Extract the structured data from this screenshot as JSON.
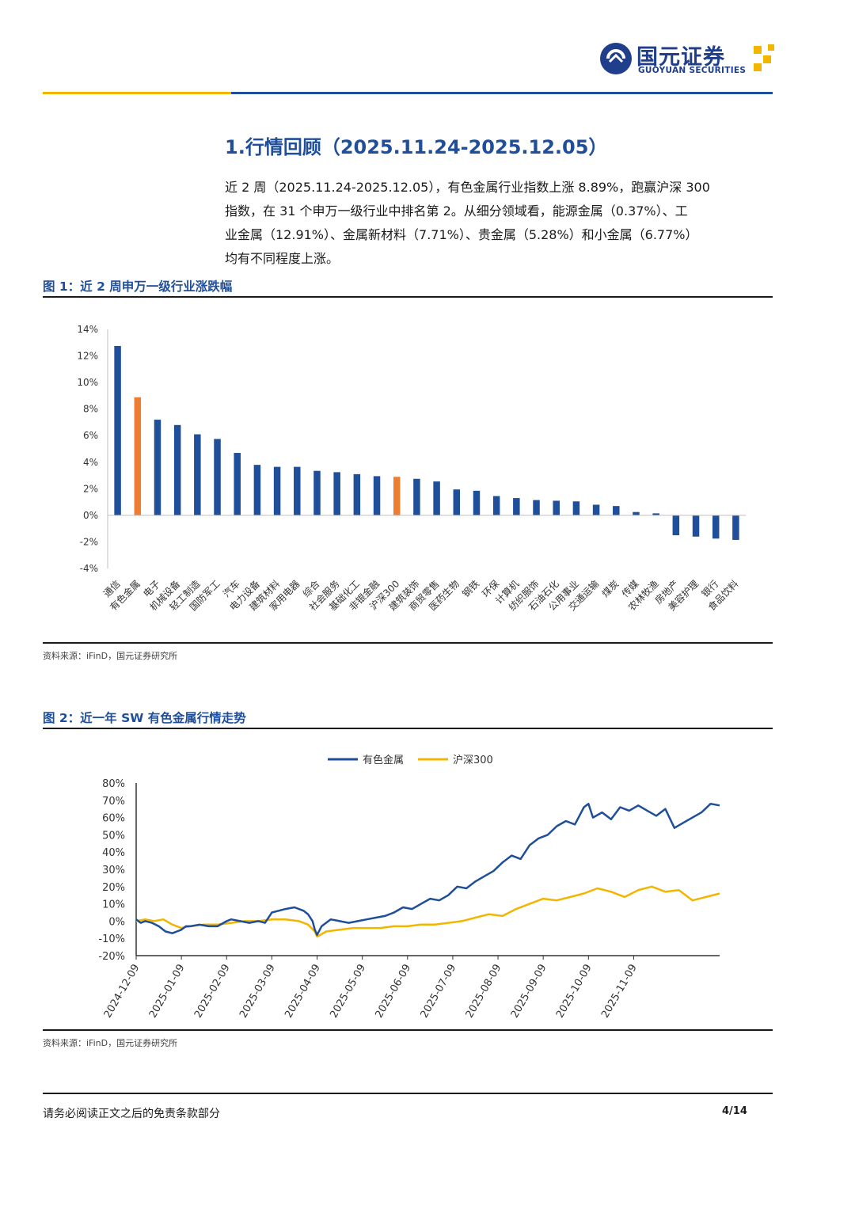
{
  "header": {
    "logo_cn": "国元证券",
    "logo_en": "GUOYUAN SECURITIES",
    "brand_blue": "#1f3e8c",
    "brand_gold": "#f2b500"
  },
  "section": {
    "title": "1.行情回顾（2025.11.24-2025.12.05）",
    "paragraph_lines": [
      "近 2 周（2025.11.24-2025.12.05），有色金属行业指数上涨 8.89%，跑赢沪深 300",
      "指数，在 31 个申万一级行业中排名第 2。从细分领域看，能源金属（0.37%）、工",
      "业金属（12.91%）、金属新材料（7.71%）、贵金属（5.28%）和小金属（6.77%）",
      "均有不同程度上涨。"
    ]
  },
  "figure1": {
    "title": "图 1：近 2 周申万一级行业涨跌幅",
    "source": "资料来源：iFinD，国元证券研究所"
  },
  "figure2": {
    "title": "图 2：近一年 SW 有色金属行情走势",
    "source": "资料来源：iFinD，国元证券研究所"
  },
  "chart_data": [
    {
      "type": "bar",
      "title": "近 2 周申万一级行业涨跌幅",
      "ylim": [
        -4,
        14
      ],
      "yticks": [
        14,
        12,
        10,
        8,
        6,
        4,
        2,
        0,
        -2,
        -4
      ],
      "ytick_labels": [
        "14%",
        "12%",
        "10%",
        "8%",
        "6%",
        "4%",
        "2%",
        "0%",
        "-2%",
        "-4%"
      ],
      "categories": [
        "通信",
        "有色金属",
        "电子",
        "机械设备",
        "轻工制造",
        "国防军工",
        "汽车",
        "电力设备",
        "建筑材料",
        "家用电器",
        "综合",
        "社会服务",
        "基础化工",
        "非银金融",
        "沪深300",
        "建筑装饰",
        "商贸零售",
        "医药生物",
        "钢铁",
        "环保",
        "计算机",
        "纺织服饰",
        "石油石化",
        "公用事业",
        "交通运输",
        "煤炭",
        "传媒",
        "农林牧渔",
        "房地产",
        "美容护理",
        "银行",
        "食品饮料"
      ],
      "values": [
        12.75,
        8.89,
        7.2,
        6.8,
        6.1,
        5.75,
        4.7,
        3.8,
        3.65,
        3.65,
        3.35,
        3.25,
        3.1,
        2.95,
        2.9,
        2.75,
        2.55,
        1.95,
        1.85,
        1.45,
        1.3,
        1.15,
        1.1,
        1.05,
        0.8,
        0.7,
        0.25,
        0.15,
        -1.5,
        -1.6,
        -1.75,
        -1.85
      ],
      "highlight": [
        "有色金属",
        "沪深300"
      ],
      "colors": {
        "default": "#1f4e9a",
        "highlight": "#ed7d31"
      }
    },
    {
      "type": "line",
      "title": "近一年 SW 有色金属行情走势",
      "ylim": [
        -20,
        80
      ],
      "yticks": [
        80,
        70,
        60,
        50,
        40,
        30,
        20,
        10,
        0,
        -10,
        -20
      ],
      "ytick_labels": [
        "80%",
        "70%",
        "60%",
        "50%",
        "40%",
        "30%",
        "20%",
        "10%",
        "0%",
        "-10%",
        "-20%"
      ],
      "xtick_labels": [
        "2024-12-09",
        "2025-01-09",
        "2025-02-09",
        "2025-03-09",
        "2025-04-09",
        "2025-05-09",
        "2025-06-09",
        "2025-07-09",
        "2025-08-09",
        "2025-09-09",
        "2025-10-09",
        "2025-11-09"
      ],
      "x_end": 12.9,
      "series": [
        {
          "name": "有色金属",
          "color": "#1f4e9a",
          "x": [
            0,
            0.1,
            0.2,
            0.35,
            0.5,
            0.65,
            0.8,
            0.9,
            1.0,
            1.1,
            1.2,
            1.4,
            1.6,
            1.8,
            2.0,
            2.1,
            2.3,
            2.5,
            2.7,
            2.85,
            3.0,
            3.15,
            3.3,
            3.5,
            3.7,
            3.8,
            3.9,
            3.95,
            4.0,
            4.1,
            4.3,
            4.5,
            4.7,
            4.9,
            5.1,
            5.3,
            5.5,
            5.7,
            5.9,
            6.1,
            6.3,
            6.5,
            6.7,
            6.9,
            7.1,
            7.3,
            7.5,
            7.7,
            7.9,
            8.1,
            8.3,
            8.5,
            8.7,
            8.9,
            9.1,
            9.3,
            9.5,
            9.7,
            9.9,
            10.0,
            10.1,
            10.3,
            10.5,
            10.7,
            10.9,
            11.1,
            11.3,
            11.5,
            11.7,
            11.9,
            12.1,
            12.3,
            12.5,
            12.7,
            12.9
          ],
          "values": [
            1,
            -1,
            0,
            -1,
            -3,
            -6,
            -7,
            -6,
            -5,
            -3,
            -3,
            -2,
            -3,
            -3,
            0,
            1,
            0,
            -1,
            0,
            -1,
            5,
            6,
            7,
            8,
            6,
            4,
            0,
            -5,
            -8,
            -3,
            1,
            0,
            -1,
            0,
            1,
            2,
            3,
            5,
            8,
            7,
            10,
            13,
            12,
            15,
            20,
            19,
            23,
            26,
            29,
            34,
            38,
            36,
            44,
            48,
            50,
            55,
            58,
            56,
            66,
            68,
            60,
            63,
            59,
            66,
            64,
            67,
            64,
            61,
            65,
            54,
            57,
            60,
            63,
            68,
            67
          ]
        },
        {
          "name": "沪深300",
          "color": "#f2b500",
          "x": [
            0,
            0.2,
            0.4,
            0.6,
            0.8,
            1.0,
            1.2,
            1.5,
            1.8,
            2.1,
            2.4,
            2.7,
            3.0,
            3.3,
            3.6,
            3.8,
            3.95,
            4.0,
            4.2,
            4.5,
            4.8,
            5.1,
            5.4,
            5.7,
            6.0,
            6.3,
            6.6,
            6.9,
            7.2,
            7.5,
            7.8,
            8.1,
            8.4,
            8.7,
            9.0,
            9.3,
            9.6,
            9.9,
            10.2,
            10.5,
            10.8,
            11.1,
            11.4,
            11.7,
            12.0,
            12.3,
            12.6,
            12.9
          ],
          "values": [
            0,
            1,
            0,
            1,
            -2,
            -4,
            -3,
            -2,
            -2,
            -1,
            0,
            0,
            1,
            1,
            0,
            -2,
            -6,
            -9,
            -6,
            -5,
            -4,
            -4,
            -4,
            -3,
            -3,
            -2,
            -2,
            -1,
            0,
            2,
            4,
            3,
            7,
            10,
            13,
            12,
            14,
            16,
            19,
            17,
            14,
            18,
            20,
            17,
            18,
            12,
            14,
            16
          ]
        }
      ]
    }
  ],
  "footer": {
    "disclaimer": "请务必阅读正文之后的免责条款部分",
    "page": "4/14"
  }
}
